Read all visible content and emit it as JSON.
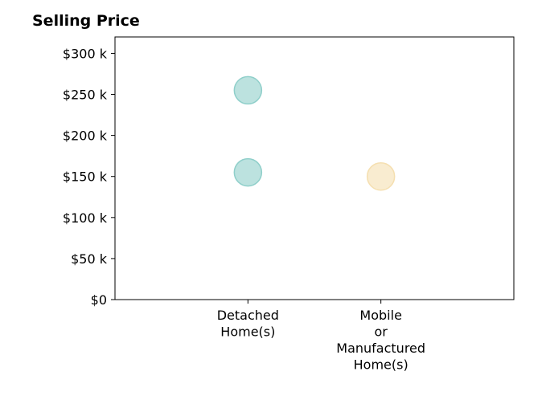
{
  "chart_data": {
    "type": "scatter",
    "title": "Selling Price",
    "xlabel": "",
    "ylabel": "",
    "categories": [
      [
        "Detached",
        "Home(s)"
      ],
      [
        "Mobile",
        "or",
        "Manufactured",
        "Home(s)"
      ]
    ],
    "x_domain": [
      0,
      3
    ],
    "ylim": [
      0,
      320000
    ],
    "y_ticks": [
      {
        "value": 0,
        "label": "$0"
      },
      {
        "value": 50000,
        "label": "$50 k"
      },
      {
        "value": 100000,
        "label": "$100 k"
      },
      {
        "value": 150000,
        "label": "$150 k"
      },
      {
        "value": 200000,
        "label": "$200 k"
      },
      {
        "value": 250000,
        "label": "$250 k"
      },
      {
        "value": 300000,
        "label": "$300 k"
      }
    ],
    "grid": false,
    "points": [
      {
        "category": "Detached Home(s)",
        "x": 1,
        "y": 255000,
        "color": "#8fcfca"
      },
      {
        "category": "Detached Home(s)",
        "x": 1,
        "y": 155000,
        "color": "#8fcfca"
      },
      {
        "category": "Mobile or Manufactured Home(s)",
        "x": 2,
        "y": 150000,
        "color": "#f5dfb0"
      }
    ]
  }
}
